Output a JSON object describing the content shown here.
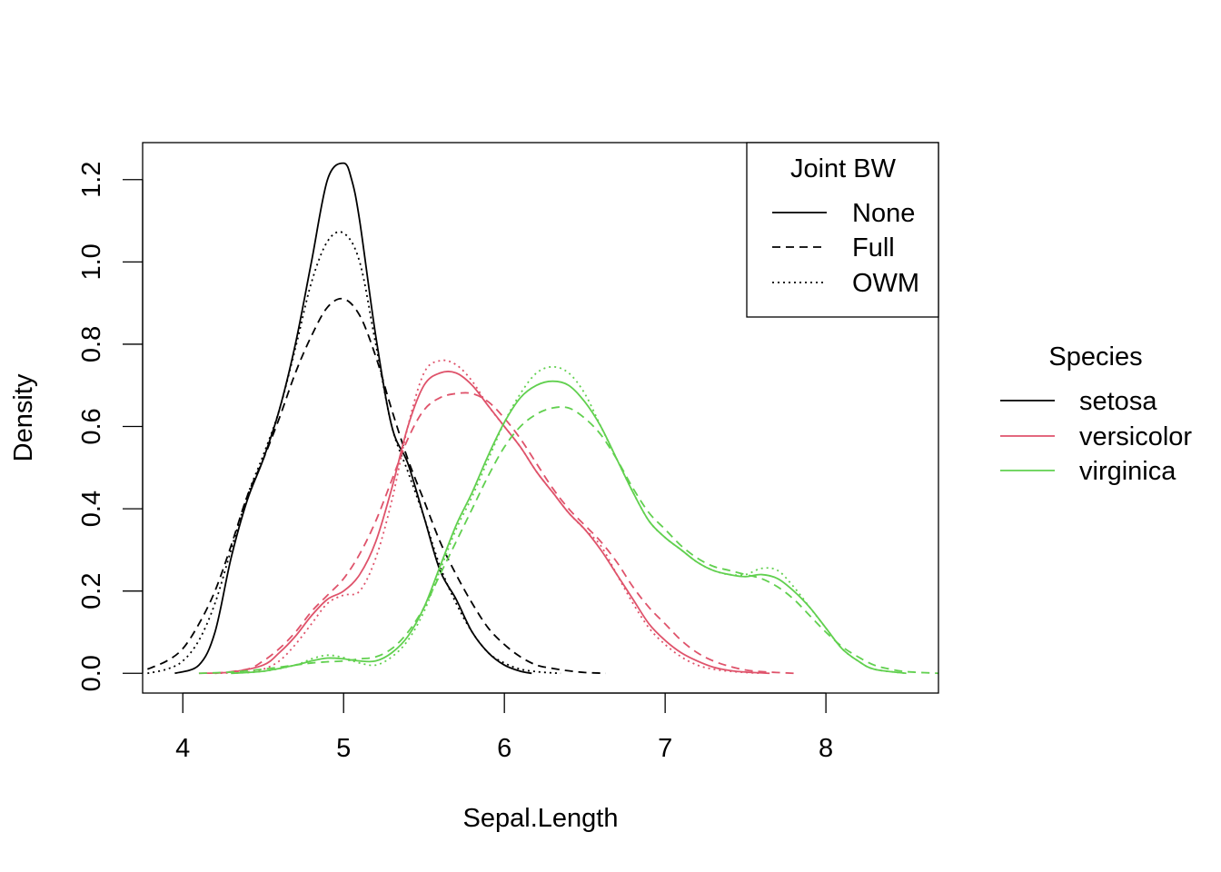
{
  "chart_data": {
    "type": "line",
    "title": "",
    "xlabel": "Sepal.Length",
    "ylabel": "Density",
    "xlim": [
      3.75,
      8.7
    ],
    "ylim": [
      -0.048,
      1.29
    ],
    "x_ticks": [
      4,
      5,
      6,
      7,
      8
    ],
    "y_ticks": [
      0.0,
      0.2,
      0.4,
      0.6,
      0.8,
      1.0,
      1.2
    ],
    "x_tick_labels": [
      "4",
      "5",
      "6",
      "7",
      "8"
    ],
    "y_tick_labels": [
      "0.0",
      "0.2",
      "0.4",
      "0.6",
      "0.8",
      "1.0",
      "1.2"
    ],
    "grid": false,
    "legend_bw": {
      "title": "Joint BW",
      "placement": "top-right inside",
      "entries": [
        {
          "label": "None",
          "linetype": "solid"
        },
        {
          "label": "Full",
          "linetype": "dashed"
        },
        {
          "label": "OWM",
          "linetype": "dotted"
        }
      ]
    },
    "legend_species": {
      "title": "Species",
      "placement": "right outside",
      "entries": [
        {
          "label": "setosa",
          "color": "#000000"
        },
        {
          "label": "versicolor",
          "color": "#DF536B"
        },
        {
          "label": "virginica",
          "color": "#61D04F"
        }
      ]
    },
    "series": [
      {
        "species": "setosa",
        "bw": "None",
        "color": "#000000",
        "linetype": "solid",
        "x": [
          3.95,
          4.1,
          4.2,
          4.3,
          4.4,
          4.5,
          4.6,
          4.7,
          4.8,
          4.9,
          5.0,
          5.05,
          5.1,
          5.2,
          5.3,
          5.4,
          5.5,
          5.6,
          5.7,
          5.8,
          5.9,
          6.0,
          6.1,
          6.17
        ],
        "y": [
          0.0,
          0.02,
          0.1,
          0.28,
          0.42,
          0.52,
          0.64,
          0.8,
          1.0,
          1.2,
          1.24,
          1.2,
          1.1,
          0.82,
          0.6,
          0.51,
          0.38,
          0.25,
          0.18,
          0.1,
          0.05,
          0.02,
          0.005,
          0.0
        ]
      },
      {
        "species": "setosa",
        "bw": "Full",
        "color": "#000000",
        "linetype": "dashed",
        "x": [
          3.78,
          3.9,
          4.0,
          4.1,
          4.2,
          4.3,
          4.4,
          4.5,
          4.6,
          4.7,
          4.8,
          4.9,
          5.0,
          5.1,
          5.2,
          5.3,
          5.4,
          5.5,
          5.6,
          5.7,
          5.8,
          5.9,
          6.0,
          6.1,
          6.2,
          6.3,
          6.4,
          6.5,
          6.63
        ],
        "y": [
          0.01,
          0.03,
          0.06,
          0.12,
          0.2,
          0.31,
          0.43,
          0.52,
          0.62,
          0.73,
          0.82,
          0.89,
          0.91,
          0.87,
          0.77,
          0.64,
          0.52,
          0.42,
          0.32,
          0.24,
          0.17,
          0.11,
          0.07,
          0.04,
          0.02,
          0.012,
          0.006,
          0.002,
          0.0
        ]
      },
      {
        "species": "setosa",
        "bw": "OWM",
        "color": "#000000",
        "linetype": "dotted",
        "x": [
          3.78,
          3.9,
          4.0,
          4.1,
          4.2,
          4.3,
          4.4,
          4.5,
          4.6,
          4.7,
          4.8,
          4.9,
          5.0,
          5.1,
          5.2,
          5.3,
          5.4,
          5.5,
          5.6,
          5.7,
          5.8,
          5.9,
          6.0,
          6.1,
          6.2,
          6.3,
          6.35
        ],
        "y": [
          0.0,
          0.01,
          0.03,
          0.08,
          0.17,
          0.3,
          0.43,
          0.53,
          0.64,
          0.79,
          0.95,
          1.05,
          1.07,
          1.0,
          0.8,
          0.6,
          0.49,
          0.38,
          0.26,
          0.17,
          0.1,
          0.05,
          0.025,
          0.01,
          0.004,
          0.001,
          0.0
        ]
      },
      {
        "species": "versicolor",
        "bw": "None",
        "color": "#DF536B",
        "linetype": "solid",
        "x": [
          4.1,
          4.3,
          4.5,
          4.6,
          4.7,
          4.8,
          4.9,
          5.0,
          5.1,
          5.2,
          5.3,
          5.4,
          5.5,
          5.6,
          5.7,
          5.8,
          5.9,
          6.0,
          6.1,
          6.2,
          6.3,
          6.4,
          6.5,
          6.6,
          6.7,
          6.8,
          6.9,
          7.0,
          7.1,
          7.2,
          7.3,
          7.4,
          7.5,
          7.65
        ],
        "y": [
          0.0,
          0.003,
          0.02,
          0.05,
          0.09,
          0.14,
          0.18,
          0.2,
          0.24,
          0.32,
          0.45,
          0.6,
          0.7,
          0.73,
          0.73,
          0.7,
          0.65,
          0.6,
          0.55,
          0.49,
          0.44,
          0.39,
          0.35,
          0.3,
          0.24,
          0.18,
          0.12,
          0.08,
          0.05,
          0.03,
          0.015,
          0.007,
          0.003,
          0.0
        ]
      },
      {
        "species": "versicolor",
        "bw": "Full",
        "color": "#DF536B",
        "linetype": "dashed",
        "x": [
          4.2,
          4.4,
          4.5,
          4.6,
          4.7,
          4.8,
          4.9,
          5.0,
          5.1,
          5.2,
          5.3,
          5.4,
          5.5,
          5.6,
          5.7,
          5.8,
          5.9,
          6.0,
          6.1,
          6.2,
          6.3,
          6.4,
          6.5,
          6.6,
          6.7,
          6.8,
          6.9,
          7.0,
          7.1,
          7.2,
          7.3,
          7.4,
          7.5,
          7.6,
          7.8
        ],
        "y": [
          0.0,
          0.01,
          0.03,
          0.06,
          0.1,
          0.15,
          0.19,
          0.23,
          0.29,
          0.37,
          0.47,
          0.57,
          0.64,
          0.67,
          0.68,
          0.68,
          0.66,
          0.62,
          0.57,
          0.51,
          0.45,
          0.4,
          0.36,
          0.32,
          0.27,
          0.21,
          0.16,
          0.12,
          0.08,
          0.05,
          0.03,
          0.017,
          0.008,
          0.004,
          0.0
        ]
      },
      {
        "species": "versicolor",
        "bw": "OWM",
        "color": "#DF536B",
        "linetype": "dotted",
        "x": [
          4.2,
          4.4,
          4.5,
          4.6,
          4.7,
          4.8,
          4.9,
          5.0,
          5.1,
          5.2,
          5.3,
          5.4,
          5.5,
          5.6,
          5.7,
          5.8,
          5.9,
          6.0,
          6.1,
          6.2,
          6.3,
          6.4,
          6.5,
          6.6,
          6.7,
          6.8,
          6.9,
          7.0,
          7.1,
          7.2,
          7.3,
          7.4,
          7.5,
          7.6
        ],
        "y": [
          0.0,
          0.003,
          0.01,
          0.03,
          0.07,
          0.12,
          0.17,
          0.19,
          0.2,
          0.28,
          0.42,
          0.6,
          0.73,
          0.76,
          0.75,
          0.71,
          0.65,
          0.6,
          0.55,
          0.49,
          0.44,
          0.39,
          0.35,
          0.31,
          0.24,
          0.17,
          0.11,
          0.07,
          0.04,
          0.02,
          0.01,
          0.005,
          0.002,
          0.0
        ]
      },
      {
        "species": "virginica",
        "bw": "None",
        "color": "#61D04F",
        "linetype": "solid",
        "x": [
          4.3,
          4.5,
          4.7,
          4.8,
          4.9,
          5.0,
          5.1,
          5.2,
          5.3,
          5.4,
          5.5,
          5.6,
          5.7,
          5.8,
          5.9,
          6.0,
          6.1,
          6.2,
          6.3,
          6.4,
          6.5,
          6.6,
          6.7,
          6.8,
          6.9,
          7.0,
          7.1,
          7.2,
          7.3,
          7.4,
          7.5,
          7.6,
          7.7,
          7.8,
          7.9,
          8.0,
          8.1,
          8.2,
          8.3,
          8.5
        ],
        "y": [
          0.0,
          0.005,
          0.02,
          0.03,
          0.037,
          0.035,
          0.03,
          0.03,
          0.05,
          0.09,
          0.16,
          0.26,
          0.36,
          0.44,
          0.53,
          0.61,
          0.67,
          0.7,
          0.71,
          0.7,
          0.66,
          0.6,
          0.52,
          0.44,
          0.37,
          0.33,
          0.3,
          0.27,
          0.25,
          0.24,
          0.235,
          0.24,
          0.23,
          0.2,
          0.16,
          0.11,
          0.06,
          0.03,
          0.01,
          0.0
        ]
      },
      {
        "species": "virginica",
        "bw": "Full",
        "color": "#61D04F",
        "linetype": "dashed",
        "x": [
          4.1,
          4.3,
          4.5,
          4.7,
          4.8,
          4.9,
          5.0,
          5.1,
          5.2,
          5.3,
          5.4,
          5.5,
          5.6,
          5.7,
          5.8,
          5.9,
          6.0,
          6.1,
          6.2,
          6.3,
          6.4,
          6.5,
          6.6,
          6.7,
          6.8,
          6.9,
          7.0,
          7.1,
          7.2,
          7.3,
          7.4,
          7.5,
          7.6,
          7.7,
          7.8,
          7.9,
          8.0,
          8.1,
          8.2,
          8.3,
          8.4,
          8.5,
          8.7
        ],
        "y": [
          0.0,
          0.003,
          0.01,
          0.02,
          0.025,
          0.028,
          0.03,
          0.035,
          0.04,
          0.06,
          0.1,
          0.16,
          0.24,
          0.32,
          0.4,
          0.48,
          0.55,
          0.6,
          0.63,
          0.645,
          0.645,
          0.62,
          0.58,
          0.52,
          0.45,
          0.39,
          0.35,
          0.31,
          0.28,
          0.26,
          0.25,
          0.24,
          0.23,
          0.21,
          0.18,
          0.14,
          0.1,
          0.065,
          0.04,
          0.02,
          0.01,
          0.004,
          0.0
        ]
      },
      {
        "species": "virginica",
        "bw": "OWM",
        "color": "#61D04F",
        "linetype": "dotted",
        "x": [
          4.3,
          4.5,
          4.7,
          4.8,
          4.9,
          5.0,
          5.1,
          5.2,
          5.3,
          5.4,
          5.5,
          5.6,
          5.7,
          5.8,
          5.9,
          6.0,
          6.1,
          6.2,
          6.3,
          6.4,
          6.5,
          6.6,
          6.7,
          6.8,
          6.9,
          7.0,
          7.1,
          7.2,
          7.3,
          7.4,
          7.5,
          7.6,
          7.7,
          7.8,
          7.9,
          8.0,
          8.1,
          8.2,
          8.3,
          8.5
        ],
        "y": [
          0.0,
          0.005,
          0.02,
          0.035,
          0.044,
          0.038,
          0.025,
          0.02,
          0.04,
          0.08,
          0.15,
          0.25,
          0.35,
          0.43,
          0.52,
          0.61,
          0.68,
          0.73,
          0.745,
          0.73,
          0.68,
          0.6,
          0.52,
          0.44,
          0.37,
          0.33,
          0.3,
          0.27,
          0.25,
          0.24,
          0.24,
          0.255,
          0.25,
          0.21,
          0.16,
          0.11,
          0.06,
          0.03,
          0.01,
          0.0
        ]
      }
    ]
  }
}
